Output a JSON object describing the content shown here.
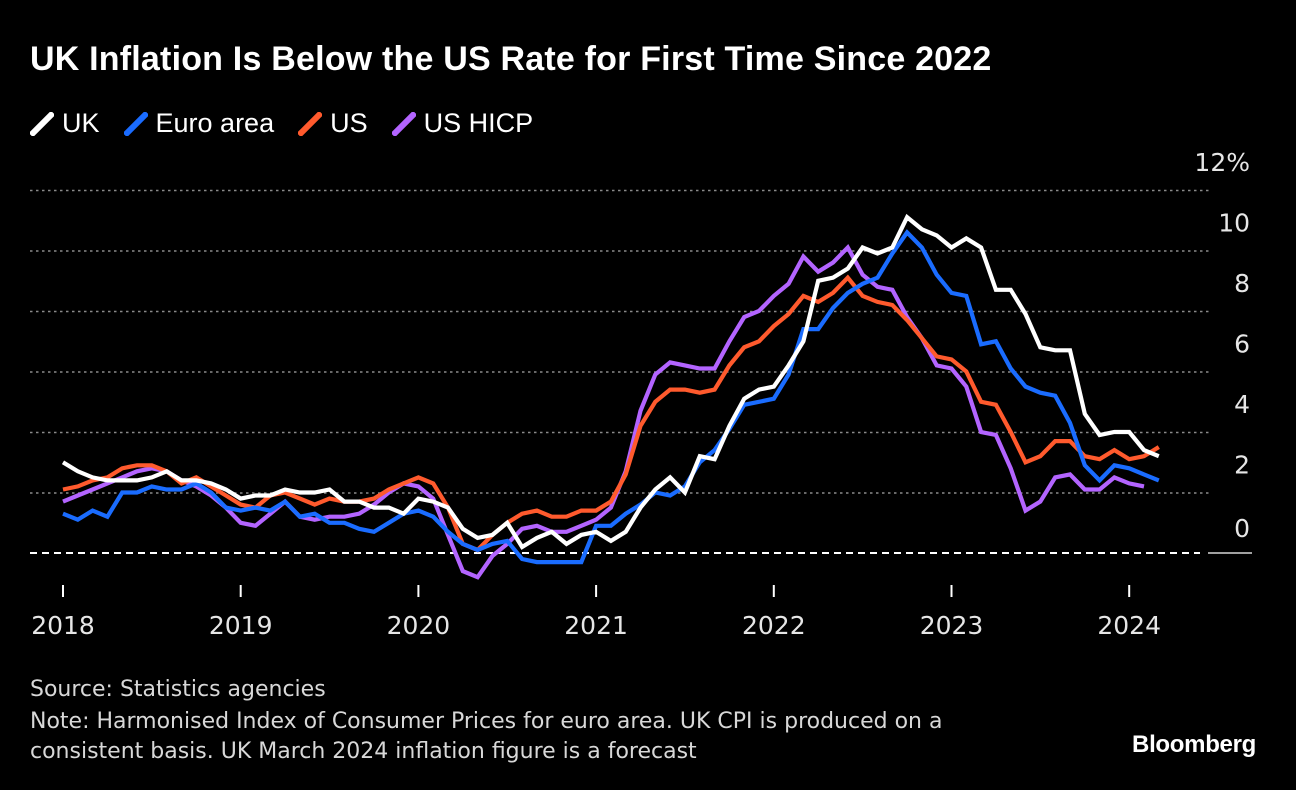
{
  "header": {
    "title": "UK Inflation Is Below the US Rate for First Time Since 2022"
  },
  "footer": {
    "source": "Source: Statistics agencies",
    "note": "Note: Harmonised Index of Consumer Prices for euro area. UK CPI is produced on a consistent basis. UK March 2024 inflation figure is a forecast",
    "brand": "Bloomberg"
  },
  "chart_data": {
    "type": "line",
    "title": "UK Inflation Is Below the US Rate for First Time Since 2022",
    "xlabel": "",
    "ylabel": "",
    "x_ticks": [
      "2018",
      "2019",
      "2020",
      "2021",
      "2022",
      "2023",
      "2024"
    ],
    "y_ticks": [
      "0",
      "2",
      "4",
      "6",
      "8",
      "10",
      "12%"
    ],
    "xlim": [
      "2018-01",
      "2024-03"
    ],
    "ylim": [
      -1,
      12
    ],
    "grid": true,
    "legend_position": "top-left",
    "series": [
      {
        "name": "UK",
        "color": "#ffffff",
        "start": "2018-01",
        "values": [
          3.0,
          2.7,
          2.5,
          2.4,
          2.4,
          2.4,
          2.5,
          2.7,
          2.4,
          2.4,
          2.3,
          2.1,
          1.8,
          1.9,
          1.9,
          2.1,
          2.0,
          2.0,
          2.1,
          1.7,
          1.7,
          1.5,
          1.5,
          1.3,
          1.8,
          1.7,
          1.5,
          0.8,
          0.5,
          0.6,
          1.0,
          0.2,
          0.5,
          0.7,
          0.3,
          0.6,
          0.7,
          0.4,
          0.7,
          1.5,
          2.1,
          2.5,
          2.0,
          3.2,
          3.1,
          4.2,
          5.1,
          5.4,
          5.5,
          6.2,
          7.0,
          9.0,
          9.1,
          9.4,
          10.1,
          9.9,
          10.1,
          11.1,
          10.7,
          10.5,
          10.1,
          10.4,
          10.1,
          8.7,
          8.7,
          7.9,
          6.8,
          6.7,
          6.7,
          4.6,
          3.9,
          4.0,
          4.0,
          3.4,
          3.2
        ]
      },
      {
        "name": "Euro area",
        "color": "#1a6cff",
        "start": "2018-01",
        "values": [
          1.3,
          1.1,
          1.4,
          1.2,
          2.0,
          2.0,
          2.2,
          2.1,
          2.1,
          2.3,
          2.0,
          1.5,
          1.4,
          1.5,
          1.4,
          1.7,
          1.2,
          1.3,
          1.0,
          1.0,
          0.8,
          0.7,
          1.0,
          1.3,
          1.4,
          1.2,
          0.7,
          0.3,
          0.1,
          0.3,
          0.4,
          -0.2,
          -0.3,
          -0.3,
          -0.3,
          -0.3,
          0.9,
          0.9,
          1.3,
          1.6,
          2.0,
          1.9,
          2.2,
          3.0,
          3.4,
          4.1,
          4.9,
          5.0,
          5.1,
          5.9,
          7.4,
          7.4,
          8.1,
          8.6,
          8.9,
          9.1,
          9.9,
          10.6,
          10.1,
          9.2,
          8.6,
          8.5,
          6.9,
          7.0,
          6.1,
          5.5,
          5.3,
          5.2,
          4.3,
          2.9,
          2.4,
          2.9,
          2.8,
          2.6,
          2.4
        ]
      },
      {
        "name": "US",
        "color": "#ff5a2d",
        "start": "2018-01",
        "values": [
          2.1,
          2.2,
          2.4,
          2.5,
          2.8,
          2.9,
          2.9,
          2.7,
          2.3,
          2.5,
          2.2,
          1.9,
          1.6,
          1.5,
          1.9,
          2.0,
          1.8,
          1.6,
          1.8,
          1.7,
          1.7,
          1.8,
          2.1,
          2.3,
          2.5,
          2.3,
          1.5,
          0.3,
          0.1,
          0.6,
          1.0,
          1.3,
          1.4,
          1.2,
          1.2,
          1.4,
          1.4,
          1.7,
          2.6,
          4.2,
          5.0,
          5.4,
          5.4,
          5.3,
          5.4,
          6.2,
          6.8,
          7.0,
          7.5,
          7.9,
          8.5,
          8.3,
          8.6,
          9.1,
          8.5,
          8.3,
          8.2,
          7.7,
          7.1,
          6.5,
          6.4,
          6.0,
          5.0,
          4.9,
          4.0,
          3.0,
          3.2,
          3.7,
          3.7,
          3.2,
          3.1,
          3.4,
          3.1,
          3.2,
          3.5
        ]
      },
      {
        "name": "US HICP",
        "color": "#b364ff",
        "start": "2018-01",
        "values": [
          1.7,
          1.9,
          2.1,
          2.3,
          2.5,
          2.7,
          2.8,
          2.7,
          2.4,
          2.2,
          1.9,
          1.5,
          1.0,
          0.9,
          1.3,
          1.7,
          1.2,
          1.1,
          1.2,
          1.2,
          1.3,
          1.6,
          2.0,
          2.3,
          2.2,
          1.8,
          0.6,
          -0.6,
          -0.8,
          -0.1,
          0.3,
          0.8,
          0.9,
          0.7,
          0.7,
          0.9,
          1.1,
          1.5,
          2.7,
          4.7,
          5.9,
          6.3,
          6.2,
          6.1,
          6.1,
          7.0,
          7.8,
          8.0,
          8.5,
          8.9,
          9.8,
          9.3,
          9.6,
          10.1,
          9.2,
          8.8,
          8.7,
          7.8,
          7.1,
          6.2,
          6.1,
          5.5,
          4.0,
          3.9,
          2.8,
          1.4,
          1.7,
          2.5,
          2.6,
          2.1,
          2.1,
          2.5,
          2.3,
          2.2
        ]
      }
    ]
  }
}
